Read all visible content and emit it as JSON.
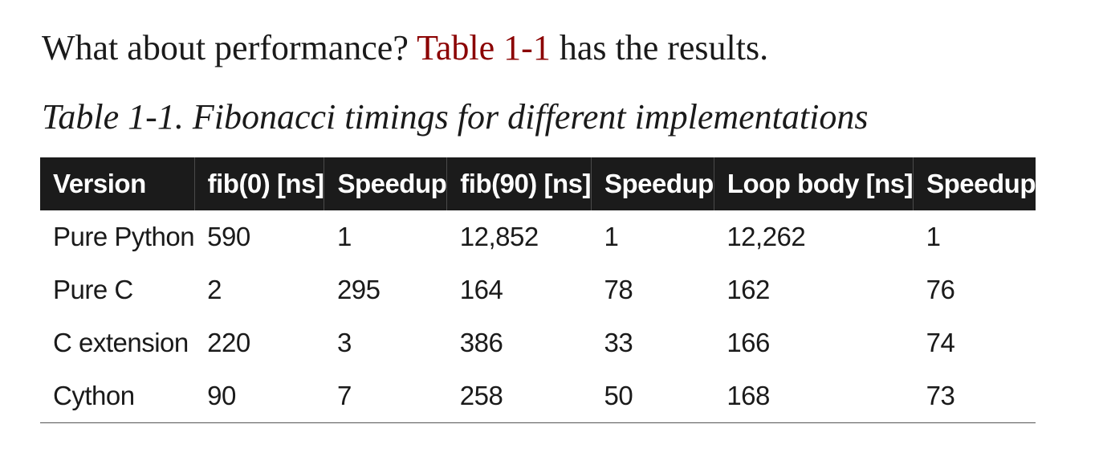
{
  "intro": {
    "before": "What about performance? ",
    "xref": "Table 1-1",
    "after": " has the results."
  },
  "caption": "Table 1-1. Fibonacci timings for different implementations",
  "table": {
    "headers": [
      "Version",
      "fib(0) [ns]",
      "Speedup",
      "fib(90) [ns]",
      "Speedup",
      "Loop body [ns]",
      "Speedup"
    ],
    "rows": [
      [
        "Pure Python",
        "590",
        "1",
        "12,852",
        "1",
        "12,262",
        "1"
      ],
      [
        "Pure C",
        "2",
        "295",
        "164",
        "78",
        "162",
        "76"
      ],
      [
        "C extension",
        "220",
        "3",
        "386",
        "33",
        "166",
        "74"
      ],
      [
        "Cython",
        "90",
        "7",
        "258",
        "50",
        "168",
        "73"
      ]
    ]
  },
  "colors": {
    "link": "#8b0000",
    "header_bg": "#1b1b1b",
    "header_text": "#ffffff"
  }
}
